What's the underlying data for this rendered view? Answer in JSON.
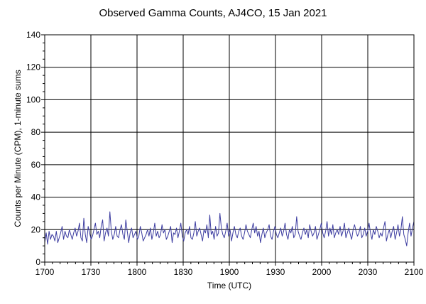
{
  "chart_data": {
    "type": "line",
    "title": "Observed Gamma Counts, AJ4CO, 15 Jan 2021",
    "xlabel": "Time (UTC)",
    "ylabel": "Counts per Minute (CPM), 1-minute sums",
    "x_tick_labels": [
      "1700",
      "1730",
      "1800",
      "1830",
      "1900",
      "1930",
      "2000",
      "2030",
      "2100"
    ],
    "y_ticks": [
      0,
      20,
      40,
      60,
      80,
      100,
      120,
      140
    ],
    "xlim_minutes": [
      0,
      240
    ],
    "ylim": [
      0,
      140
    ],
    "grid": true,
    "line_color": "#3c3ca0",
    "x_unit": "minutes after 1700 UTC",
    "series": [
      {
        "values": [
          12,
          18,
          11,
          19,
          14,
          17,
          16,
          13,
          19,
          12,
          15,
          18,
          22,
          14,
          19,
          16,
          15,
          20,
          17,
          14,
          18,
          21,
          16,
          19,
          24,
          15,
          13,
          27,
          17,
          12,
          22,
          18,
          14,
          16,
          20,
          24,
          17,
          19,
          15,
          22,
          26,
          13,
          18,
          21,
          16,
          31,
          19,
          14,
          17,
          22,
          16,
          15,
          20,
          23,
          17,
          14,
          26,
          19,
          12,
          18,
          21,
          15,
          17,
          19,
          14,
          16,
          22,
          18,
          13,
          15,
          17,
          20,
          16,
          21,
          14,
          18,
          24,
          16,
          19,
          15,
          17,
          23,
          18,
          20,
          14,
          16,
          19,
          22,
          12,
          18,
          17,
          21,
          15,
          19,
          24,
          16,
          13,
          18,
          20,
          17,
          22,
          15,
          14,
          18,
          25,
          16,
          19,
          21,
          17,
          13,
          20,
          18,
          23,
          15,
          29,
          17,
          19,
          14,
          22,
          16,
          18,
          30,
          21,
          17,
          15,
          19,
          24,
          16,
          20,
          13,
          18,
          22,
          17,
          15,
          19,
          21,
          16,
          14,
          18,
          23,
          19,
          17,
          15,
          20,
          24,
          18,
          22,
          16,
          19,
          12,
          17,
          21,
          15,
          18,
          20,
          23,
          16,
          14,
          19,
          22,
          17,
          15,
          18,
          21,
          16,
          19,
          24,
          17,
          14,
          20,
          18,
          22,
          15,
          17,
          28,
          19,
          16,
          14,
          18,
          21,
          17,
          20,
          15,
          23,
          19,
          16,
          18,
          22,
          14,
          17,
          20,
          24,
          18,
          15,
          19,
          25,
          16,
          21,
          17,
          23,
          15,
          18,
          20,
          17,
          22,
          16,
          19,
          24,
          15,
          18,
          21,
          17,
          14,
          20,
          23,
          19,
          16,
          18,
          22,
          15,
          17,
          21,
          16,
          19,
          24,
          18,
          14,
          20,
          17,
          22,
          19,
          15,
          18,
          16,
          21,
          25,
          13,
          17,
          20,
          15,
          19,
          22,
          14,
          18,
          23,
          16,
          20,
          28,
          17,
          14,
          10,
          18,
          24,
          16,
          21,
          25
        ]
      }
    ]
  }
}
